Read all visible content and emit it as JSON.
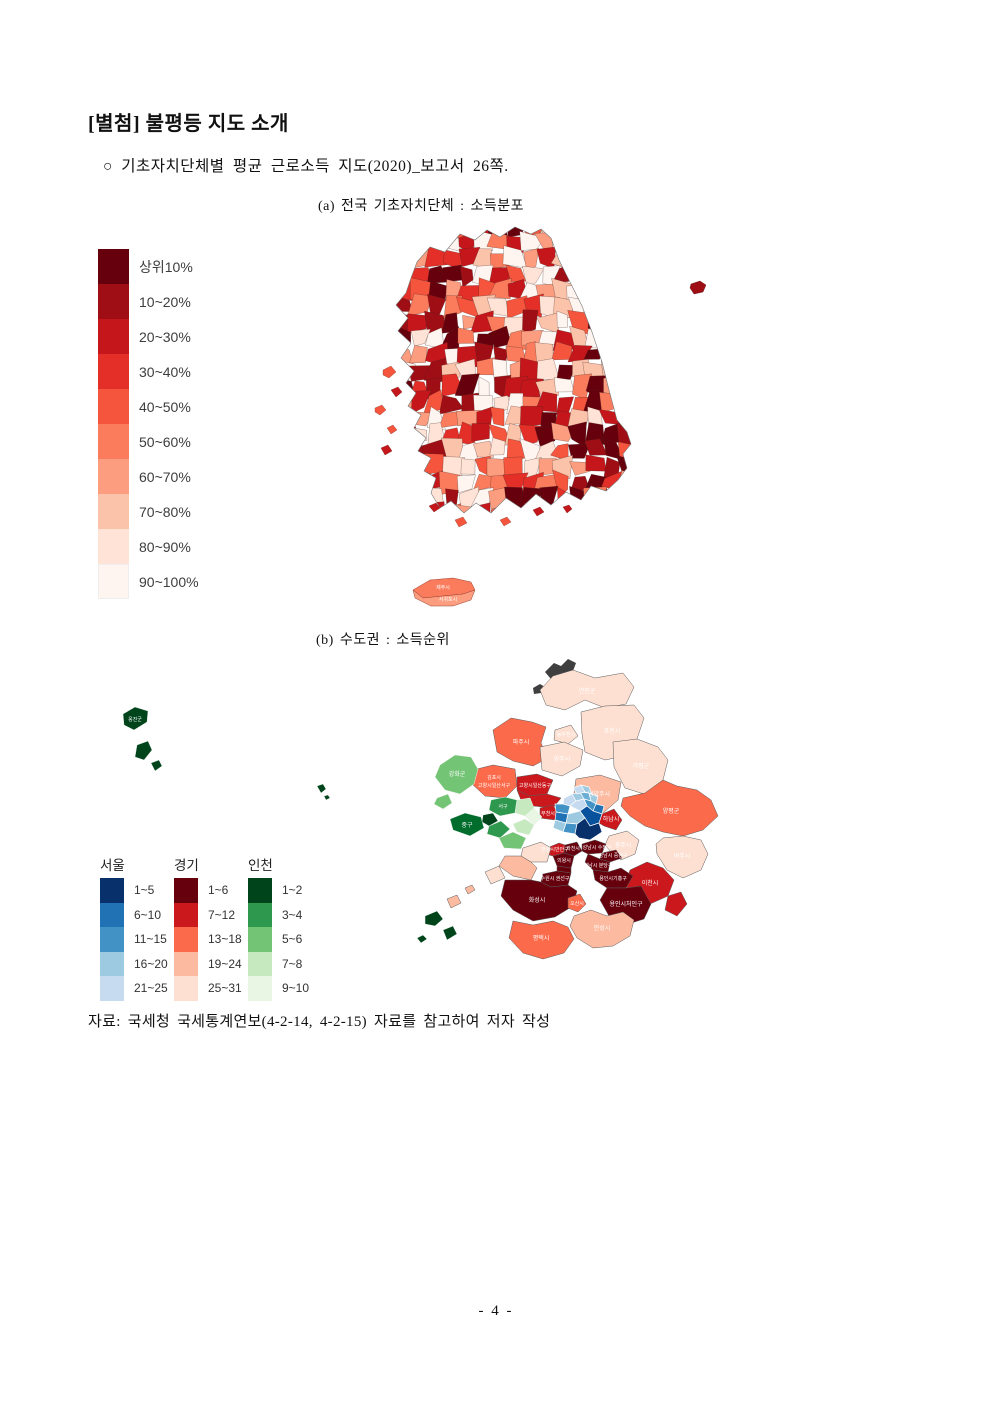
{
  "page": {
    "title": "[별첨] 불평등 지도 소개",
    "bullet": "○ 기초자치단체별 평균 근로소득 지도(2020)_보고서 26쪽.",
    "source_note": "자료: 국세청 국세통계연보(4-2-14, 4-2-15) 자료를 참고하여 저자 작성",
    "page_number": "- 4 -"
  },
  "figure_a": {
    "caption": "(a) 전국 기초자치단체 : 소득분포",
    "legend": {
      "items": [
        {
          "label": "상위10%",
          "color": "#67000d"
        },
        {
          "label": "10~20%",
          "color": "#9f0e15"
        },
        {
          "label": "20~30%",
          "color": "#c5161b"
        },
        {
          "label": "30~40%",
          "color": "#e32f27"
        },
        {
          "label": "40~50%",
          "color": "#f5553d"
        },
        {
          "label": "50~60%",
          "color": "#fb7c5c"
        },
        {
          "label": "60~70%",
          "color": "#fc9d7f"
        },
        {
          "label": "70~80%",
          "color": "#fcc3ab"
        },
        {
          "label": "80~90%",
          "color": "#fee3d6"
        },
        {
          "label": "90~100%",
          "color": "#fff5f0"
        }
      ]
    },
    "island_labels": {
      "jeju_north": "제주시",
      "jeju_south": "서귀포시"
    }
  },
  "figure_b": {
    "caption": "(b) 수도권 : 소득순위",
    "legends": [
      {
        "title": "서울",
        "items": [
          {
            "label": "1~5",
            "color": "#08306b"
          },
          {
            "label": "6~10",
            "color": "#2171b5"
          },
          {
            "label": "11~15",
            "color": "#4292c6"
          },
          {
            "label": "16~20",
            "color": "#9ecae1"
          },
          {
            "label": "21~25",
            "color": "#c6dbef"
          }
        ]
      },
      {
        "title": "경기",
        "items": [
          {
            "label": "1~6",
            "color": "#67000d"
          },
          {
            "label": "7~12",
            "color": "#cb181d"
          },
          {
            "label": "13~18",
            "color": "#fb6a4a"
          },
          {
            "label": "19~24",
            "color": "#fcbba1"
          },
          {
            "label": "25~31",
            "color": "#fee0d2"
          }
        ]
      },
      {
        "title": "인천",
        "items": [
          {
            "label": "1~2",
            "color": "#00441b"
          },
          {
            "label": "3~4",
            "color": "#2f984f"
          },
          {
            "label": "5~6",
            "color": "#74c476"
          },
          {
            "label": "7~8",
            "color": "#c7e9c0"
          },
          {
            "label": "9~10",
            "color": "#e8f6e3"
          }
        ]
      }
    ],
    "regions": [
      {
        "label": "옹진군",
        "color": "#00441b"
      },
      {
        "label": "",
        "color": "#00441b"
      },
      {
        "label": "",
        "color": "#00441b"
      },
      {
        "label": "",
        "color": "#3f3f3f"
      },
      {
        "label": "연천군",
        "color": "#fee0d2"
      },
      {
        "label": "파주시",
        "color": "#fb6a4a"
      },
      {
        "label": "동두천시",
        "color": "#fee0d2"
      },
      {
        "label": "양주시",
        "color": "#fee0d2"
      },
      {
        "label": "포천시",
        "color": "#fee0d2"
      },
      {
        "label": "가평군",
        "color": "#fee0d2"
      },
      {
        "label": "남양주시",
        "color": "#fcbba1"
      },
      {
        "label": "김포시",
        "label2": "고양시일산서구",
        "color": "#fb6a4a"
      },
      {
        "label": "고양시일산동구",
        "color": "#cb181d"
      },
      {
        "label": "",
        "color": "#cb181d"
      },
      {
        "label": "강화군",
        "color": "#74c476"
      },
      {
        "label": "",
        "color": "#74c476"
      },
      {
        "label": "서구",
        "color": "#2f984f"
      },
      {
        "label": "",
        "color": "#c7e9c0"
      },
      {
        "label": "",
        "color": "#e8f6e3"
      },
      {
        "label": "중구",
        "color": "#006d2c"
      },
      {
        "label": "",
        "color": "#00441b"
      },
      {
        "label": "",
        "color": "#2f984f"
      },
      {
        "label": "",
        "color": "#74c476"
      },
      {
        "label": "",
        "color": "#c7e9c0"
      },
      {
        "label": "부천시",
        "color": "#cb181d"
      },
      {
        "label": "",
        "color": "#c6dbef"
      },
      {
        "label": "",
        "color": "#9ecae1"
      },
      {
        "label": "",
        "color": "#6baed6"
      },
      {
        "label": "",
        "color": "#9ecae1"
      },
      {
        "label": "",
        "color": "#4292c6"
      },
      {
        "label": "",
        "color": "#c6dbef"
      },
      {
        "label": "",
        "color": "#4292c6"
      },
      {
        "label": "",
        "color": "#2171b5"
      },
      {
        "label": "",
        "color": "#2171b5"
      },
      {
        "label": "",
        "color": "#9ecae1"
      },
      {
        "label": "",
        "color": "#08519c"
      },
      {
        "label": "",
        "color": "#4292c6"
      },
      {
        "label": "",
        "color": "#08306b"
      },
      {
        "label": "",
        "color": "#9ecae1"
      },
      {
        "label": "",
        "color": "#c6dbef"
      },
      {
        "label": "",
        "color": "#9ecae1"
      },
      {
        "label": "하남시",
        "color": "#cb181d"
      },
      {
        "label": "광주시",
        "color": "#fee0d2"
      },
      {
        "label": "양평군",
        "color": "#fb6a4a"
      },
      {
        "label": "여주시",
        "color": "#fee0d2"
      },
      {
        "label": "이천시",
        "color": "#cb181d"
      },
      {
        "label": "",
        "color": "#cb181d"
      },
      {
        "label": "성남시 수정구",
        "color": "#67000d"
      },
      {
        "label": "성남시 중원구",
        "color": "#67000d"
      },
      {
        "label": "성남시 분당구",
        "color": "#67000d"
      },
      {
        "label": "과천시",
        "color": "#67000d"
      },
      {
        "label": "안양시만안구",
        "color": "#cb181d"
      },
      {
        "label": "의왕시",
        "color": "#67000d"
      },
      {
        "label": "",
        "color": "#67000d"
      },
      {
        "label": "수원시 권선구",
        "color": "#67000d"
      },
      {
        "label": "용인시기흥구",
        "color": "#67000d"
      },
      {
        "label": "용인시처인구",
        "color": "#67000d"
      },
      {
        "label": "화성시",
        "color": "#67000d"
      },
      {
        "label": "오산시",
        "color": "#fb6a4a"
      },
      {
        "label": "평택시",
        "color": "#fb6a4a"
      },
      {
        "label": "안성시",
        "color": "#fcbba1"
      },
      {
        "label": "",
        "color": "#fee0d2"
      },
      {
        "label": "",
        "color": "#fcbba1"
      },
      {
        "label": "",
        "color": "#fee0d2"
      },
      {
        "label": "",
        "color": "#00441b"
      },
      {
        "label": "",
        "color": "#fcbba1"
      }
    ]
  }
}
